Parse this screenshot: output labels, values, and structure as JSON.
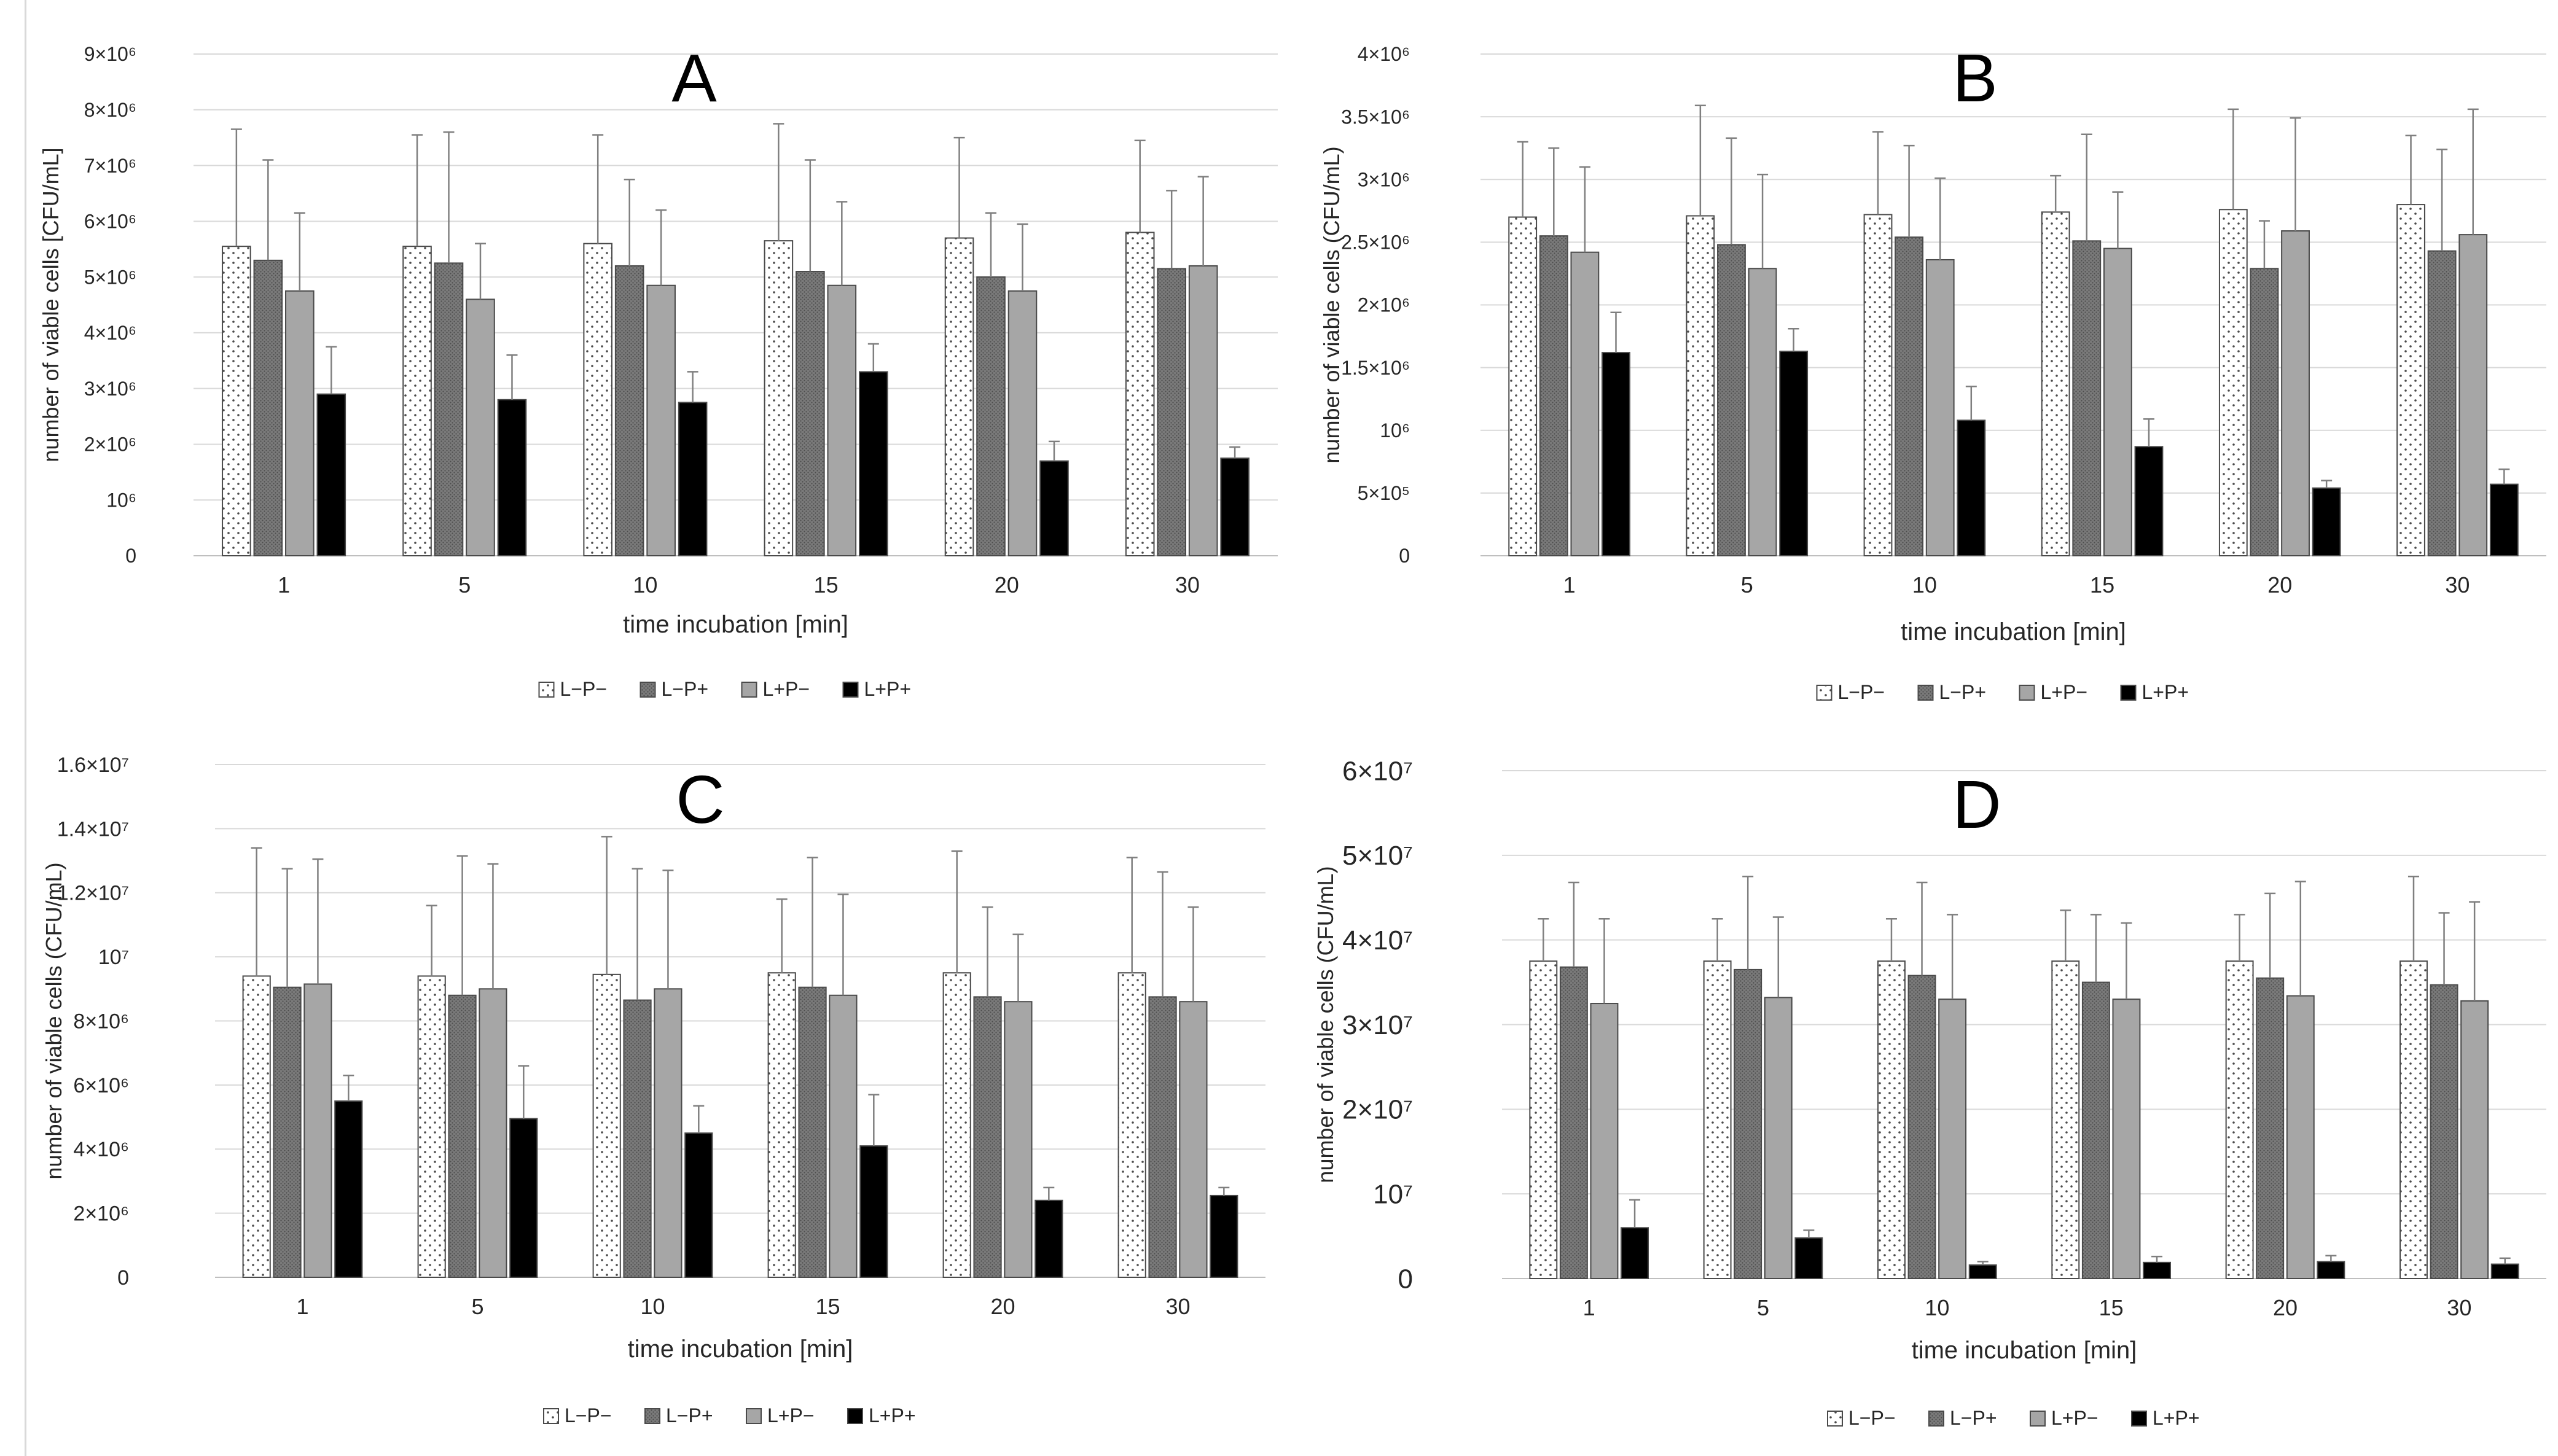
{
  "chart_data": [
    {
      "panel": "A",
      "type": "bar",
      "categories": [
        "1",
        "5",
        "10",
        "15",
        "20",
        "30"
      ],
      "xlabel": "time incubation [min]",
      "ylabel": "number of viable cells [CFU/mL]",
      "ylim": [
        0,
        9000000
      ],
      "yticks": [
        {
          "value": 0,
          "label": "0"
        },
        {
          "value": 1000000,
          "label": "10⁶"
        },
        {
          "value": 2000000,
          "label": "2×10⁶"
        },
        {
          "value": 3000000,
          "label": "3×10⁶"
        },
        {
          "value": 4000000,
          "label": "4×10⁶"
        },
        {
          "value": 5000000,
          "label": "5×10⁶"
        },
        {
          "value": 6000000,
          "label": "6×10⁶"
        },
        {
          "value": 7000000,
          "label": "7×10⁶"
        },
        {
          "value": 8000000,
          "label": "8×10⁶"
        },
        {
          "value": 9000000,
          "label": "9×10⁶"
        }
      ],
      "grid": true,
      "legend": "bottom",
      "series": [
        {
          "name": "L−P−",
          "values": [
            5550000,
            5550000,
            5600000,
            5650000,
            5700000,
            5800000
          ],
          "errors": [
            2100000,
            2000000,
            1950000,
            2100000,
            1800000,
            1650000
          ]
        },
        {
          "name": "L−P+",
          "values": [
            5300000,
            5250000,
            5200000,
            5100000,
            5000000,
            5150000
          ],
          "errors": [
            1800000,
            2350000,
            1550000,
            2000000,
            1150000,
            1400000
          ]
        },
        {
          "name": "L+P−",
          "values": [
            4750000,
            4600000,
            4850000,
            4850000,
            4750000,
            5200000
          ],
          "errors": [
            1400000,
            1000000,
            1350000,
            1500000,
            1200000,
            1600000
          ]
        },
        {
          "name": "L+P+",
          "values": [
            2900000,
            2800000,
            2750000,
            3300000,
            1700000,
            1750000
          ],
          "errors": [
            850000,
            800000,
            550000,
            500000,
            350000,
            200000
          ]
        }
      ]
    },
    {
      "panel": "B",
      "type": "bar",
      "categories": [
        "1",
        "5",
        "10",
        "15",
        "20",
        "30"
      ],
      "xlabel": "time incubation [min]",
      "ylabel": "number of viable cells (CFU/mL)",
      "ylim": [
        0,
        4000000
      ],
      "yticks": [
        {
          "value": 0,
          "label": "0"
        },
        {
          "value": 500000,
          "label": "5×10⁵"
        },
        {
          "value": 1000000,
          "label": "10⁶"
        },
        {
          "value": 1500000,
          "label": "1.5×10⁶"
        },
        {
          "value": 2000000,
          "label": "2×10⁶"
        },
        {
          "value": 2500000,
          "label": "2.5×10⁶"
        },
        {
          "value": 3000000,
          "label": "3×10⁶"
        },
        {
          "value": 3500000,
          "label": "3.5×10⁶"
        },
        {
          "value": 4000000,
          "label": "4×10⁶"
        }
      ],
      "grid": true,
      "legend": "bottom",
      "series": [
        {
          "name": "L−P−",
          "values": [
            2700000,
            2710000,
            2720000,
            2740000,
            2760000,
            2800000
          ],
          "errors": [
            600000,
            880000,
            660000,
            290000,
            800000,
            550000
          ]
        },
        {
          "name": "L−P+",
          "values": [
            2550000,
            2480000,
            2540000,
            2510000,
            2290000,
            2430000
          ],
          "errors": [
            700000,
            850000,
            730000,
            850000,
            380000,
            810000
          ]
        },
        {
          "name": "L+P−",
          "values": [
            2420000,
            2290000,
            2360000,
            2450000,
            2590000,
            2560000
          ],
          "errors": [
            680000,
            750000,
            650000,
            450000,
            900000,
            1000000
          ]
        },
        {
          "name": "L+P+",
          "values": [
            1620000,
            1630000,
            1080000,
            870000,
            540000,
            570000
          ],
          "errors": [
            320000,
            180000,
            270000,
            220000,
            60000,
            120000
          ]
        }
      ]
    },
    {
      "panel": "C",
      "type": "bar",
      "categories": [
        "1",
        "5",
        "10",
        "15",
        "20",
        "30"
      ],
      "xlabel": "time incubation [min]",
      "ylabel": "number of viable cells (CFU/mL)",
      "ylim": [
        0,
        16000000
      ],
      "yticks": [
        {
          "value": 0,
          "label": "0"
        },
        {
          "value": 2000000,
          "label": "2×10⁶"
        },
        {
          "value": 4000000,
          "label": "4×10⁶"
        },
        {
          "value": 6000000,
          "label": "6×10⁶"
        },
        {
          "value": 8000000,
          "label": "8×10⁶"
        },
        {
          "value": 10000000,
          "label": "10⁷"
        },
        {
          "value": 12000000,
          "label": "1.2×10⁷"
        },
        {
          "value": 14000000,
          "label": "1.4×10⁷"
        },
        {
          "value": 16000000,
          "label": "1.6×10⁷"
        }
      ],
      "grid": true,
      "legend": "bottom",
      "series": [
        {
          "name": "L−P−",
          "values": [
            9400000,
            9400000,
            9450000,
            9500000,
            9500000,
            9500000
          ],
          "errors": [
            4000000,
            2200000,
            4300000,
            2300000,
            3800000,
            3600000
          ]
        },
        {
          "name": "L−P+",
          "values": [
            9050000,
            8800000,
            8650000,
            9050000,
            8750000,
            8750000
          ],
          "errors": [
            3700000,
            4350000,
            4100000,
            4050000,
            2800000,
            3900000
          ]
        },
        {
          "name": "L+P−",
          "values": [
            9150000,
            9000000,
            9000000,
            8800000,
            8600000,
            8600000
          ],
          "errors": [
            3900000,
            3900000,
            3700000,
            3150000,
            2100000,
            2950000
          ]
        },
        {
          "name": "L+P+",
          "values": [
            5500000,
            4950000,
            4500000,
            4100000,
            2400000,
            2550000
          ],
          "errors": [
            800000,
            1650000,
            850000,
            1600000,
            400000,
            250000
          ]
        }
      ]
    },
    {
      "panel": "D",
      "type": "bar",
      "categories": [
        "1",
        "5",
        "10",
        "15",
        "20",
        "30"
      ],
      "xlabel": "time incubation [min]",
      "ylabel": "number of viable cells (CFU/mL)",
      "ylim": [
        0,
        60000000
      ],
      "yticks": [
        {
          "value": 0,
          "label": "0"
        },
        {
          "value": 10000000,
          "label": "10⁷"
        },
        {
          "value": 20000000,
          "label": "2×10⁷"
        },
        {
          "value": 30000000,
          "label": "3×10⁷"
        },
        {
          "value": 40000000,
          "label": "4×10⁷"
        },
        {
          "value": 50000000,
          "label": "5×10⁷"
        },
        {
          "value": 60000000,
          "label": "6×10⁷"
        }
      ],
      "grid": true,
      "legend": "bottom",
      "series": [
        {
          "name": "L−P−",
          "values": [
            37500000,
            37500000,
            37500000,
            37500000,
            37500000,
            37500000
          ],
          "errors": [
            5000000,
            5000000,
            5000000,
            6000000,
            5500000,
            10000000
          ]
        },
        {
          "name": "L−P+",
          "values": [
            36800000,
            36500000,
            35800000,
            35000000,
            35500000,
            34700000
          ],
          "errors": [
            10000000,
            11000000,
            11000000,
            8000000,
            10000000,
            8500000
          ]
        },
        {
          "name": "L+P−",
          "values": [
            32500000,
            33200000,
            33000000,
            33000000,
            33400000,
            32800000
          ],
          "errors": [
            10000000,
            9500000,
            10000000,
            9000000,
            13500000,
            11700000
          ]
        },
        {
          "name": "L+P+",
          "values": [
            6000000,
            4800000,
            1600000,
            1900000,
            2000000,
            1700000
          ],
          "errors": [
            3300000,
            900000,
            400000,
            700000,
            700000,
            700000
          ]
        }
      ]
    }
  ],
  "styles": {
    "series_fills": [
      "#ffffff",
      "#7a7a7a",
      "#a6a6a6",
      "#000000"
    ],
    "series_patterns": [
      "dots",
      "fine-dots",
      "none",
      "none"
    ],
    "bar_outline": "#4a4a4a",
    "error_bar": "#7f7f7f",
    "grid": "#d9d9d9",
    "axis": "#bfbfbf",
    "text": "#262626"
  }
}
